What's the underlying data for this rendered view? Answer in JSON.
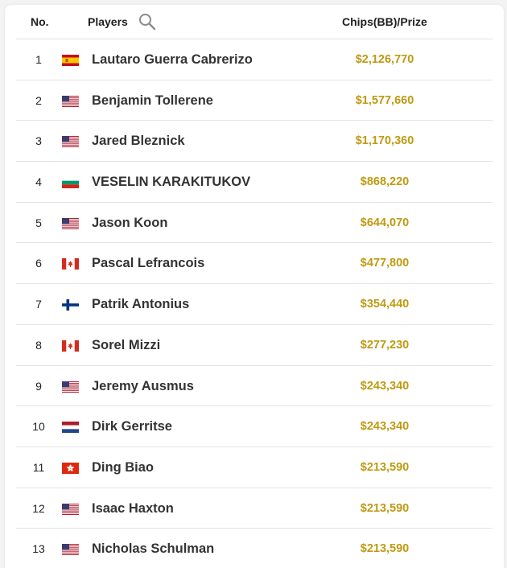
{
  "header": {
    "no_label": "No.",
    "players_label": "Players",
    "prize_label": "Chips(BB)/Prize"
  },
  "icons": {
    "search": "search-icon"
  },
  "colors": {
    "prize": "#bf9a12",
    "name": "#333333"
  },
  "rows": [
    {
      "no": "1",
      "flag": "es",
      "name": "Lautaro Guerra Cabrerizo",
      "prize": "$2,126,770"
    },
    {
      "no": "2",
      "flag": "us",
      "name": "Benjamin Tollerene",
      "prize": "$1,577,660"
    },
    {
      "no": "3",
      "flag": "us",
      "name": "Jared Bleznick",
      "prize": "$1,170,360"
    },
    {
      "no": "4",
      "flag": "bg",
      "name": "VESELIN KARAKITUKOV",
      "prize": "$868,220"
    },
    {
      "no": "5",
      "flag": "us",
      "name": "Jason Koon",
      "prize": "$644,070"
    },
    {
      "no": "6",
      "flag": "ca",
      "name": "Pascal Lefrancois",
      "prize": "$477,800"
    },
    {
      "no": "7",
      "flag": "fi",
      "name": "Patrik Antonius",
      "prize": "$354,440"
    },
    {
      "no": "8",
      "flag": "ca",
      "name": "Sorel Mizzi",
      "prize": "$277,230"
    },
    {
      "no": "9",
      "flag": "us",
      "name": "Jeremy Ausmus",
      "prize": "$243,340"
    },
    {
      "no": "10",
      "flag": "nl",
      "name": "Dirk Gerritse",
      "prize": "$243,340"
    },
    {
      "no": "11",
      "flag": "hk",
      "name": "Ding Biao",
      "prize": "$213,590"
    },
    {
      "no": "12",
      "flag": "us",
      "name": "Isaac Haxton",
      "prize": "$213,590"
    },
    {
      "no": "13",
      "flag": "us",
      "name": "Nicholas Schulman",
      "prize": "$213,590"
    }
  ]
}
